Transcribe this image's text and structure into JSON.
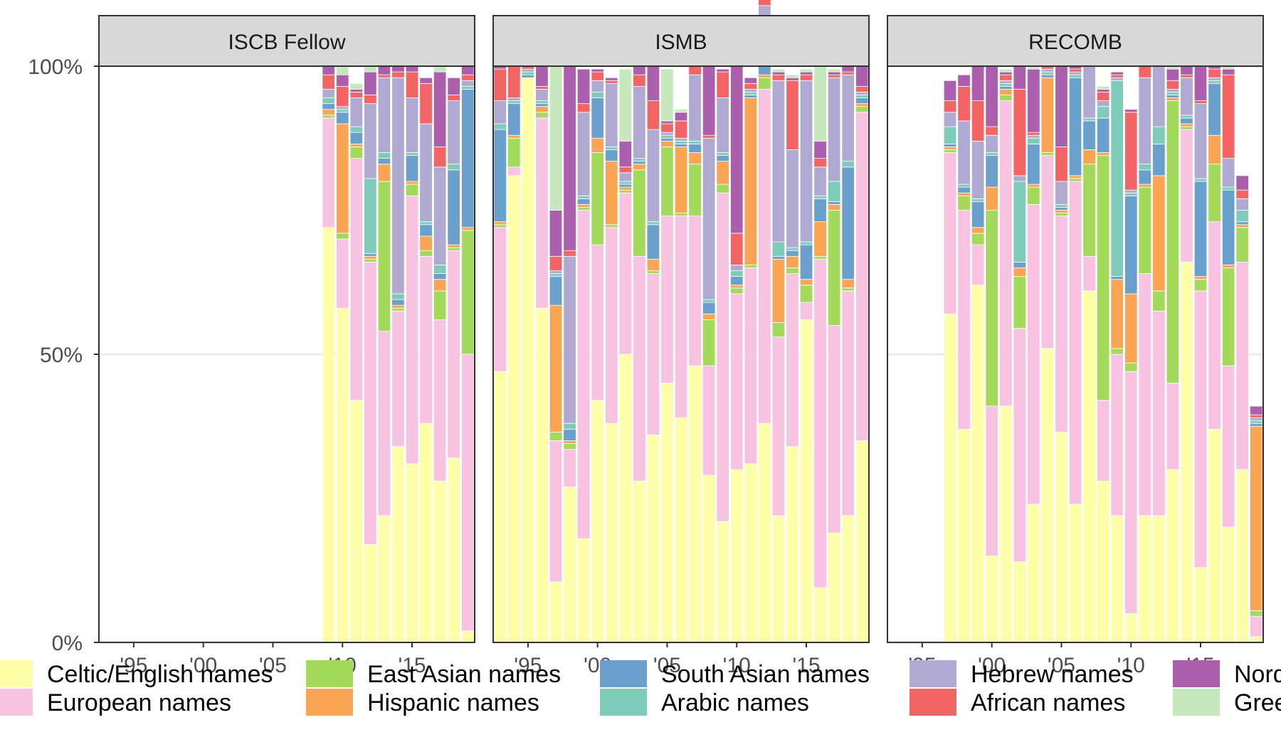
{
  "chart_data": {
    "type": "bar",
    "stacked": true,
    "y_tick_labels": [
      "0%",
      "50%",
      "100%"
    ],
    "x_tick_labels": [
      "'95",
      "'00",
      "'05",
      "'10",
      "'15"
    ],
    "ylim": [
      0,
      1
    ],
    "grid": "horizontal major gridlines",
    "legend_position": "bottom",
    "categories": [
      "Celtic/English names",
      "European names",
      "East Asian names",
      "Hispanic names",
      "South Asian names",
      "Arabic names",
      "Hebrew names",
      "African names",
      "Nordic names",
      "Greek names"
    ],
    "colors": {
      "Celtic/English names": "#ffffaa",
      "European names": "#f8c3e1",
      "East Asian names": "#a4da5c",
      "Hispanic names": "#f9a553",
      "South Asian names": "#6b9fcc",
      "Arabic names": "#7fcbb9",
      "Hebrew names": "#b0aad3",
      "African names": "#f36565",
      "Nordic names": "#ac5fac",
      "Greek names": "#c5e8bc"
    },
    "panels": [
      {
        "name": "ISCB Fellow",
        "bars": [
          {
            "year": 2009,
            "v": [
              0.72,
              0.19,
              0.005,
              0.01,
              0.01,
              0.01,
              0.015,
              0.025,
              0.02,
              0
            ]
          },
          {
            "year": 2010,
            "v": [
              0.58,
              0.12,
              0.01,
              0.19,
              0.02,
              0.005,
              0.005,
              0.035,
              0.02,
              0.015
            ]
          },
          {
            "year": 2011,
            "v": [
              0.42,
              0.42,
              0.02,
              0.005,
              0.02,
              0.01,
              0.05,
              0.01,
              0.005,
              0.01
            ]
          },
          {
            "year": 2012,
            "v": [
              0.17,
              0.49,
              0.005,
              0.005,
              0.005,
              0.13,
              0.13,
              0.015,
              0.04,
              0.01
            ]
          },
          {
            "year": 2013,
            "v": [
              0.22,
              0.32,
              0.26,
              0.03,
              0.01,
              0.01,
              0.13,
              0.005,
              0.015,
              0
            ]
          },
          {
            "year": 2014,
            "v": [
              0.34,
              0.235,
              0.005,
              0.005,
              0.01,
              0.01,
              0.375,
              0.01,
              0.01,
              0
            ]
          },
          {
            "year": 2015,
            "v": [
              0.31,
              0.465,
              0.02,
              0.005,
              0.045,
              0.005,
              0.095,
              0.045,
              0.01,
              0
            ]
          },
          {
            "year": 2016,
            "v": [
              0.38,
              0.29,
              0.01,
              0.025,
              0.02,
              0.005,
              0.17,
              0.07,
              0.01,
              0
            ]
          },
          {
            "year": 2017,
            "v": [
              0.28,
              0.28,
              0.05,
              0.02,
              0.01,
              0.015,
              0.17,
              0.035,
              0.13,
              0.01
            ]
          },
          {
            "year": 2018,
            "v": [
              0.32,
              0.36,
              0.005,
              0.005,
              0.13,
              0.01,
              0.11,
              0.01,
              0.03,
              0
            ]
          },
          {
            "year": 2019,
            "v": [
              0.02,
              0.48,
              0.215,
              0.005,
              0.24,
              0.005,
              0.01,
              0.01,
              0.015,
              0
            ]
          }
        ]
      },
      {
        "name": "ISMB",
        "bars": [
          {
            "year": 1993,
            "v": [
              0.47,
              0.25,
              0.005,
              0.005,
              0.16,
              0.01,
              0.04,
              0.055,
              0.005,
              0
            ]
          },
          {
            "year": 1994,
            "v": [
              0.81,
              0.015,
              0.05,
              0.005,
              0.055,
              0.005,
              0.005,
              0.055,
              0.005,
              0
            ]
          },
          {
            "year": 1995,
            "v": [
              0.98,
              0,
              0,
              0,
              0.005,
              0.005,
              0.005,
              0.005,
              0,
              0
            ]
          },
          {
            "year": 1996,
            "v": [
              0.58,
              0.33,
              0.01,
              0.01,
              0.005,
              0.005,
              0.02,
              0.005,
              0.035,
              0
            ]
          },
          {
            "year": 1997,
            "v": [
              0.105,
              0.245,
              0.015,
              0.22,
              0.05,
              0.005,
              0.005,
              0.025,
              0.08,
              0.25
            ]
          },
          {
            "year": 1998,
            "v": [
              0.27,
              0.065,
              0.01,
              0.005,
              0.02,
              0.01,
              0.29,
              0.01,
              0.33,
              0
            ]
          },
          {
            "year": 1999,
            "v": [
              0.18,
              0.57,
              0.005,
              0.005,
              0.01,
              0.005,
              0.145,
              0.015,
              0.06,
              0
            ]
          },
          {
            "year": 2000,
            "v": [
              0.42,
              0.27,
              0.16,
              0.025,
              0.07,
              0.01,
              0.02,
              0.015,
              0.005,
              0
            ]
          },
          {
            "year": 2001,
            "v": [
              0.38,
              0.34,
              0.005,
              0.11,
              0.02,
              0.005,
              0.11,
              0.005,
              0.005,
              0
            ]
          },
          {
            "year": 2002,
            "v": [
              0.5,
              0.28,
              0.005,
              0.005,
              0.005,
              0.005,
              0.015,
              0.01,
              0.045,
              0.125
            ]
          },
          {
            "year": 2003,
            "v": [
              0.28,
              0.39,
              0.15,
              0.01,
              0.005,
              0.005,
              0.125,
              0.02,
              0.04,
              0
            ]
          },
          {
            "year": 2004,
            "v": [
              0.36,
              0.28,
              0.005,
              0.02,
              0.06,
              0.005,
              0.16,
              0.05,
              0.06,
              0
            ]
          },
          {
            "year": 2005,
            "v": [
              0.45,
              0.29,
              0.12,
              0.01,
              0.005,
              0.005,
              0.005,
              0.015,
              0.005,
              0.09
            ]
          },
          {
            "year": 2006,
            "v": [
              0.39,
              0.35,
              0.005,
              0.115,
              0.005,
              0.005,
              0.005,
              0.03,
              0.015,
              0.005
            ]
          },
          {
            "year": 2007,
            "v": [
              0.48,
              0.26,
              0.09,
              0.02,
              0.015,
              0.005,
              0.115,
              0.015,
              0.005,
              0
            ]
          },
          {
            "year": 2008,
            "v": [
              0.29,
              0.19,
              0.08,
              0.01,
              0.02,
              0.005,
              0.28,
              0.005,
              0.14,
              0
            ]
          },
          {
            "year": 2009,
            "v": [
              0.21,
              0.57,
              0.015,
              0.04,
              0.01,
              0.005,
              0.095,
              0.045,
              0.005,
              0
            ]
          },
          {
            "year": 2010,
            "v": [
              0.3,
              0.305,
              0.01,
              0.005,
              0.015,
              0.01,
              0.01,
              0.055,
              0.29,
              0.005
            ]
          },
          {
            "year": 2011,
            "v": [
              0.31,
              0.34,
              0.005,
              0.29,
              0.005,
              0.005,
              0.005,
              0.01,
              0.01,
              0
            ]
          },
          {
            "year": 2012,
            "v": [
              0.38,
              0.58,
              0.02,
              0.005,
              0.04,
              0.01,
              0.07,
              0.045,
              0.005,
              0
            ]
          },
          {
            "year": 2013,
            "v": [
              0.22,
              0.31,
              0.025,
              0.11,
              0.005,
              0.025,
              0.28,
              0.01,
              0.005,
              0.005
            ]
          },
          {
            "year": 2014,
            "v": [
              0.34,
              0.3,
              0.01,
              0.02,
              0.01,
              0.005,
              0.17,
              0.12,
              0.005,
              0.005
            ]
          },
          {
            "year": 2015,
            "v": [
              0.56,
              0.03,
              0.03,
              0.01,
              0.06,
              0.005,
              0.28,
              0.01,
              0.005,
              0.005
            ]
          },
          {
            "year": 2016,
            "v": [
              0.095,
              0.57,
              0.005,
              0.06,
              0.04,
              0.005,
              0.05,
              0.015,
              0.03,
              0.13
            ]
          },
          {
            "year": 2017,
            "v": [
              0.19,
              0.36,
              0.2,
              0.01,
              0.005,
              0.035,
              0.18,
              0.005,
              0.005,
              0.005
            ]
          },
          {
            "year": 2018,
            "v": [
              0.22,
              0.39,
              0.005,
              0.015,
              0.195,
              0.01,
              0.15,
              0.005,
              0.01,
              0
            ]
          },
          {
            "year": 2019,
            "v": [
              0.35,
              0.57,
              0.01,
              0.005,
              0.01,
              0.005,
              0.005,
              0.01,
              0.035,
              0
            ]
          }
        ]
      },
      {
        "name": "RECOMB",
        "bars": [
          {
            "year": 1997,
            "v": [
              0.57,
              0.28,
              0.005,
              0.005,
              0.005,
              0.03,
              0.025,
              0.02,
              0.035,
              0
            ]
          },
          {
            "year": 1998,
            "v": [
              0.37,
              0.38,
              0.025,
              0.005,
              0.01,
              0.005,
              0.11,
              0.06,
              0.02,
              0
            ]
          },
          {
            "year": 1999,
            "v": [
              0.62,
              0.07,
              0.02,
              0.01,
              0.045,
              0.005,
              0.1,
              0.07,
              0.06,
              0
            ]
          },
          {
            "year": 2000,
            "v": [
              0.15,
              0.26,
              0.34,
              0.04,
              0.055,
              0.005,
              0.03,
              0.015,
              0.125,
              0
            ]
          },
          {
            "year": 2001,
            "v": [
              0.41,
              0.53,
              0.01,
              0.01,
              0.005,
              0.005,
              0.005,
              0.01,
              0.005,
              0.005
            ]
          },
          {
            "year": 2002,
            "v": [
              0.14,
              0.405,
              0.09,
              0.015,
              0.01,
              0.14,
              0.01,
              0.15,
              0.04,
              0
            ]
          },
          {
            "year": 2003,
            "v": [
              0.24,
              0.52,
              0.03,
              0.005,
              0.07,
              0.01,
              0.005,
              0.005,
              0.11,
              0.005
            ]
          },
          {
            "year": 2004,
            "v": [
              0.51,
              0.335,
              0.005,
              0.13,
              0.005,
              0.005,
              0.005,
              0.005,
              0.005,
              0
            ]
          },
          {
            "year": 2005,
            "v": [
              0.365,
              0.375,
              0.005,
              0.005,
              0.005,
              0.005,
              0.04,
              0.06,
              0.14,
              0
            ]
          },
          {
            "year": 2006,
            "v": [
              0.24,
              0.56,
              0.005,
              0.005,
              0.17,
              0.005,
              0.005,
              0.005,
              0.005,
              0
            ]
          },
          {
            "year": 2007,
            "v": [
              0.61,
              0.06,
              0.16,
              0.025,
              0.05,
              0.005,
              0.11,
              0.005,
              0.005,
              0.005
            ]
          },
          {
            "year": 2008,
            "v": [
              0.28,
              0.14,
              0.425,
              0.005,
              0.06,
              0.02,
              0.01,
              0.015,
              0.005,
              0.005
            ]
          },
          {
            "year": 2009,
            "v": [
              0.22,
              0.28,
              0.01,
              0.12,
              0.005,
              0.34,
              0.005,
              0.005,
              0.005,
              0
            ]
          },
          {
            "year": 2010,
            "v": [
              0.05,
              0.42,
              0.015,
              0.12,
              0.17,
              0.005,
              0.005,
              0.135,
              0.005,
              0
            ]
          },
          {
            "year": 2011,
            "v": [
              0.22,
              0.42,
              0.15,
              0.005,
              0.025,
              0.01,
              0.15,
              0.025,
              0.005,
              0
            ]
          },
          {
            "year": 2012,
            "v": [
              0.22,
              0.355,
              0.035,
              0.2,
              0.055,
              0.03,
              0.105,
              0.005,
              0.02,
              0
            ]
          },
          {
            "year": 2013,
            "v": [
              0.3,
              0.15,
              0.49,
              0.005,
              0.005,
              0.005,
              0.005,
              0.015,
              0.02,
              0.005
            ]
          },
          {
            "year": 2014,
            "v": [
              0.66,
              0.23,
              0.005,
              0.005,
              0.01,
              0.005,
              0.065,
              0.005,
              0.015,
              0
            ]
          },
          {
            "year": 2015,
            "v": [
              0.13,
              0.48,
              0.02,
              0.005,
              0.165,
              0.005,
              0.13,
              0.005,
              0.06,
              0
            ]
          },
          {
            "year": 2016,
            "v": [
              0.37,
              0.36,
              0.1,
              0.05,
              0.09,
              0.005,
              0.005,
              0.015,
              0.005,
              0
            ]
          },
          {
            "year": 2017,
            "v": [
              0.2,
              0.28,
              0.17,
              0.005,
              0.13,
              0.005,
              0.05,
              0.145,
              0.01,
              0.005
            ]
          },
          {
            "year": 2018,
            "v": [
              0.3,
              0.36,
              0.06,
              0.005,
              0.005,
              0.02,
              0.02,
              0.015,
              0.025,
              0
            ]
          },
          {
            "year": 2019,
            "v": [
              0.01,
              0.035,
              0.01,
              0.32,
              0.005,
              0.005,
              0.005,
              0.005,
              0.015,
              0
            ]
          }
        ]
      }
    ]
  }
}
